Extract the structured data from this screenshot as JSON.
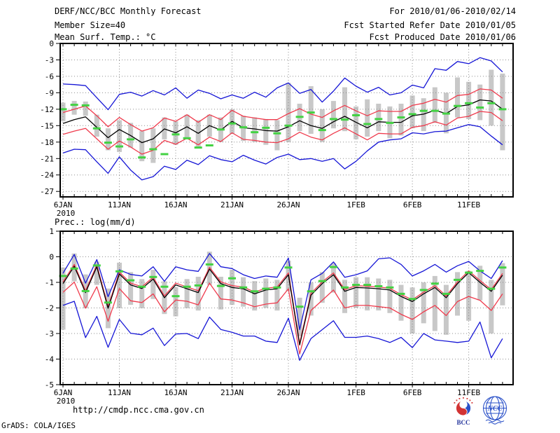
{
  "header": {
    "title": "DERF/NCC/BCC Monthly Forecast",
    "member_size": "Member Size=40",
    "for_range": "For 2010/01/06-2010/02/14",
    "fcst_started": "Fcst Started Refer Date 2010/01/05",
    "fcst_produced": "Fcst Produced Date 2010/01/06"
  },
  "footer": {
    "url": "http://cmdp.ncc.cma.gov.cn",
    "credit": "GrADS: COLA/IGES",
    "bcc_label": "BCC",
    "ncc_label": "NCC"
  },
  "colors": {
    "blue_line": "#1616d6",
    "red_line": "#ef3b4d",
    "mean_line": "#000000",
    "obs_dash": "#43d243",
    "bar": "#c8c8c8",
    "grid": "#8f8f8f",
    "logo_blue": "#2a50c8",
    "logo_red": "#d23333"
  },
  "chart_data": [
    {
      "type": "line",
      "title": "Mean Surf. Temp.: °C",
      "ylim": [
        -28,
        0
      ],
      "yticks": [
        0,
        -3,
        -6,
        -9,
        -12,
        -15,
        -18,
        -21,
        -24,
        -27
      ],
      "n_days": 40,
      "xticks": [
        {
          "label": "6JAN",
          "day": 0,
          "sub": "2010"
        },
        {
          "label": "11JAN",
          "day": 5
        },
        {
          "label": "16JAN",
          "day": 10
        },
        {
          "label": "21JAN",
          "day": 15
        },
        {
          "label": "26JAN",
          "day": 20
        },
        {
          "label": "1FEB",
          "day": 26
        },
        {
          "label": "6FEB",
          "day": 31
        },
        {
          "label": "11FEB",
          "day": 36
        }
      ],
      "series": [
        {
          "name": "ens-min",
          "color_key": "blue_line",
          "values": [
            -20.0,
            -19.3,
            -19.4,
            -21.6,
            -23.7,
            -20.7,
            -23.1,
            -24.9,
            -24.3,
            -22.4,
            -23.0,
            -21.3,
            -22.1,
            -20.5,
            -21.2,
            -21.6,
            -20.4,
            -21.3,
            -22.0,
            -20.8,
            -20.2,
            -21.2,
            -21.0,
            -21.5,
            -21.0,
            -22.9,
            -21.5,
            -19.6,
            -18.0,
            -17.6,
            -17.4,
            -16.3,
            -16.5,
            -16.1,
            -16.0,
            -15.4,
            -14.8,
            -15.2,
            -16.9,
            -18.5
          ]
        },
        {
          "name": "ens-max",
          "color_key": "blue_line",
          "values": [
            -7.4,
            -7.5,
            -7.7,
            -9.9,
            -12.1,
            -9.3,
            -8.9,
            -9.6,
            -8.6,
            -9.4,
            -8.1,
            -10.0,
            -8.5,
            -9.1,
            -10.1,
            -9.4,
            -10.0,
            -8.9,
            -9.8,
            -8.1,
            -7.2,
            -9.1,
            -8.4,
            -10.7,
            -8.7,
            -6.3,
            -7.8,
            -8.9,
            -8.0,
            -9.4,
            -9.0,
            -7.6,
            -8.1,
            -4.6,
            -4.9,
            -3.3,
            -3.7,
            -2.6,
            -3.2,
            -5.2
          ]
        },
        {
          "name": "spread-lo",
          "color_key": "red_line",
          "values": [
            -16.6,
            -16.0,
            -15.5,
            -17.4,
            -19.3,
            -17.8,
            -18.9,
            -20.2,
            -19.5,
            -17.7,
            -18.4,
            -17.3,
            -18.5,
            -17.1,
            -17.9,
            -16.3,
            -17.5,
            -17.7,
            -18.0,
            -18.1,
            -17.4,
            -16.2,
            -17.1,
            -17.6,
            -16.4,
            -15.4,
            -16.5,
            -17.6,
            -16.4,
            -16.5,
            -16.5,
            -15.3,
            -15.0,
            -14.3,
            -14.9,
            -13.6,
            -13.3,
            -12.4,
            -12.6,
            -14.1
          ]
        },
        {
          "name": "spread-hi",
          "color_key": "red_line",
          "values": [
            -12.6,
            -12.0,
            -11.4,
            -13.2,
            -15.2,
            -13.5,
            -14.8,
            -16.0,
            -15.4,
            -13.6,
            -14.2,
            -13.0,
            -14.4,
            -13.0,
            -13.9,
            -12.2,
            -13.3,
            -13.6,
            -13.9,
            -13.9,
            -12.8,
            -11.9,
            -12.9,
            -13.5,
            -12.3,
            -11.3,
            -12.3,
            -13.2,
            -12.3,
            -12.4,
            -12.4,
            -11.3,
            -10.9,
            -10.2,
            -10.7,
            -9.5,
            -9.3,
            -8.3,
            -8.5,
            -10.0
          ]
        },
        {
          "name": "ens-mean",
          "color_key": "mean_line",
          "values": [
            -14.6,
            -13.9,
            -13.4,
            -15.3,
            -17.2,
            -15.7,
            -16.8,
            -18.1,
            -17.4,
            -15.6,
            -16.3,
            -15.2,
            -16.4,
            -15.0,
            -15.8,
            -14.2,
            -15.4,
            -15.6,
            -15.9,
            -16.0,
            -15.2,
            -14.1,
            -15.0,
            -15.5,
            -14.3,
            -13.3,
            -14.4,
            -15.4,
            -14.3,
            -14.4,
            -14.4,
            -13.2,
            -12.9,
            -12.2,
            -12.8,
            -11.5,
            -11.2,
            -10.3,
            -10.5,
            -12.0
          ]
        }
      ],
      "bars": {
        "top": [
          -10.8,
          -10.5,
          -10.6,
          -13.0,
          -15.5,
          -14.0,
          -14.5,
          -16.0,
          -15.5,
          -13.5,
          -14.2,
          -13.0,
          -14.0,
          -13.0,
          -13.5,
          -12.0,
          -13.2,
          -13.5,
          -13.8,
          -14.0,
          -7.2,
          -11.0,
          -7.8,
          -12.0,
          -10.5,
          -8.0,
          -11.5,
          -10.2,
          -11.0,
          -11.5,
          -11.0,
          -9.5,
          -10.0,
          -8.0,
          -9.0,
          -6.2,
          -7.0,
          -7.5,
          -4.8,
          -5.5
        ],
        "bottom": [
          -14.2,
          -13.0,
          -13.2,
          -17.0,
          -19.5,
          -19.8,
          -19.0,
          -21.5,
          -21.8,
          -17.5,
          -18.5,
          -17.2,
          -19.0,
          -17.0,
          -18.0,
          -16.5,
          -17.8,
          -18.0,
          -18.5,
          -19.5,
          -18.0,
          -16.0,
          -16.5,
          -18.0,
          -15.5,
          -16.0,
          -17.5,
          -17.0,
          -16.0,
          -17.3,
          -16.8,
          -15.5,
          -16.0,
          -14.5,
          -16.4,
          -13.5,
          -13.8,
          -14.0,
          -15.0,
          -19.5
        ]
      },
      "obs": [
        -12.0,
        -11.2,
        -11.3,
        -15.5,
        -18.1,
        -18.8,
        -17.5,
        -20.8,
        -19.3,
        -20.2,
        -16.6,
        -17.3,
        -19.0,
        -18.6,
        -15.7,
        -14.6,
        -15.3,
        -16.2,
        -15.4,
        -16.4,
        -15.0,
        -13.4,
        -12.6,
        -15.8,
        -13.8,
        -13.9,
        -13.1,
        -14.7,
        -13.8,
        -14.5,
        -13.5,
        -12.9,
        -12.3,
        -12.3,
        -12.8,
        -11.4,
        -10.9,
        -11.7,
        -10.9,
        -12.0
      ]
    },
    {
      "type": "line",
      "title": "Prec.: log(mm/d)",
      "ylim": [
        -5,
        1
      ],
      "yticks": [
        1,
        0,
        -1,
        -2,
        -3,
        -4,
        -5
      ],
      "n_days": 40,
      "xticks": [
        {
          "label": "6JAN",
          "day": 0,
          "sub": "2010"
        },
        {
          "label": "11JAN",
          "day": 5
        },
        {
          "label": "16JAN",
          "day": 10
        },
        {
          "label": "21JAN",
          "day": 15
        },
        {
          "label": "26JAN",
          "day": 20
        },
        {
          "label": "1FEB",
          "day": 26
        },
        {
          "label": "6FEB",
          "day": 31
        },
        {
          "label": "11FEB",
          "day": 36
        }
      ],
      "series": [
        {
          "name": "ens-min",
          "color_key": "blue_line",
          "values": [
            -1.9,
            -1.74,
            -3.16,
            -2.33,
            -3.54,
            -2.45,
            -2.99,
            -3.05,
            -2.79,
            -3.47,
            -3.02,
            -3.0,
            -3.2,
            -2.36,
            -2.84,
            -2.95,
            -3.1,
            -3.1,
            -3.3,
            -3.35,
            -2.4,
            -4.05,
            -3.2,
            -2.85,
            -2.5,
            -3.15,
            -3.15,
            -3.1,
            -3.2,
            -3.35,
            -3.15,
            -3.55,
            -3.0,
            -3.25,
            -3.3,
            -3.35,
            -3.3,
            -2.55,
            -3.95,
            -3.2
          ]
        },
        {
          "name": "ens-max",
          "color_key": "blue_line",
          "values": [
            -0.64,
            0.09,
            -1.03,
            -0.11,
            -1.56,
            -0.51,
            -0.69,
            -0.75,
            -0.39,
            -0.96,
            -0.39,
            -0.51,
            -0.57,
            0.13,
            -0.39,
            -0.46,
            -0.7,
            -0.85,
            -0.75,
            -0.8,
            -0.05,
            -2.85,
            -0.9,
            -0.65,
            -0.2,
            -0.8,
            -0.7,
            -0.55,
            -0.08,
            -0.04,
            -0.3,
            -0.75,
            -0.55,
            -0.3,
            -0.6,
            -0.35,
            -0.18,
            -0.55,
            -0.85,
            -0.15
          ]
        },
        {
          "name": "spread-lo",
          "color_key": "red_line",
          "values": [
            -1.39,
            -0.99,
            -2.01,
            -1.17,
            -2.52,
            -1.24,
            -1.72,
            -1.79,
            -1.45,
            -2.15,
            -1.69,
            -1.74,
            -1.88,
            -1.03,
            -1.65,
            -1.69,
            -1.8,
            -1.95,
            -1.85,
            -1.8,
            -1.25,
            -3.8,
            -2.1,
            -1.7,
            -1.3,
            -2.0,
            -1.9,
            -1.9,
            -1.95,
            -2.0,
            -2.25,
            -2.45,
            -2.15,
            -1.9,
            -2.3,
            -1.75,
            -1.55,
            -1.7,
            -2.1,
            -1.45
          ]
        },
        {
          "name": "spread-hi",
          "color_key": "red_line",
          "values": [
            -0.98,
            -0.3,
            -1.33,
            -0.32,
            -1.94,
            -0.6,
            -1.03,
            -1.17,
            -0.8,
            -1.53,
            -1.03,
            -1.18,
            -1.33,
            -0.41,
            -0.98,
            -1.13,
            -1.18,
            -1.38,
            -1.23,
            -1.18,
            -0.63,
            -3.38,
            -1.43,
            -0.98,
            -0.63,
            -1.28,
            -1.13,
            -1.15,
            -1.18,
            -1.23,
            -1.48,
            -1.68,
            -1.38,
            -1.13,
            -1.53,
            -0.98,
            -0.55,
            -0.93,
            -1.28,
            -0.65
          ]
        },
        {
          "name": "ens-mean",
          "color_key": "mean_line",
          "values": [
            -1.05,
            -0.37,
            -1.4,
            -0.39,
            -2.01,
            -0.67,
            -1.1,
            -1.24,
            -0.87,
            -1.6,
            -1.1,
            -1.25,
            -1.4,
            -0.48,
            -1.05,
            -1.2,
            -1.25,
            -1.45,
            -1.3,
            -1.25,
            -0.7,
            -3.45,
            -1.5,
            -1.05,
            -0.7,
            -1.35,
            -1.2,
            -1.22,
            -1.25,
            -1.3,
            -1.55,
            -1.75,
            -1.45,
            -1.2,
            -1.6,
            -1.05,
            -0.62,
            -1.0,
            -1.35,
            -0.72
          ]
        }
      ],
      "bars": {
        "top": [
          -0.42,
          0.13,
          -0.69,
          -0.19,
          -1.24,
          -0.23,
          -0.6,
          -0.87,
          -0.51,
          -0.96,
          -1.19,
          -0.87,
          -0.78,
          0.2,
          -0.78,
          -0.51,
          -0.8,
          -0.95,
          -0.85,
          -0.9,
          -0.15,
          -1.6,
          -1.0,
          -0.6,
          -0.25,
          -0.9,
          -0.8,
          -0.8,
          -0.85,
          -0.9,
          -1.1,
          -1.2,
          -1.0,
          -0.75,
          -1.1,
          -0.6,
          -0.55,
          -0.35,
          -0.9,
          -0.25
        ],
        "bottom": [
          -2.85,
          -0.96,
          -2.01,
          -1.1,
          -2.79,
          -2.01,
          -1.88,
          -2.01,
          -1.65,
          -2.24,
          -2.33,
          -2.01,
          -2.1,
          -1.1,
          -2.06,
          -1.88,
          -1.95,
          -2.1,
          -2.0,
          -2.1,
          -1.35,
          -3.1,
          -2.3,
          -1.8,
          -1.4,
          -2.2,
          -2.0,
          -2.1,
          -2.1,
          -2.2,
          -2.5,
          -3.0,
          -2.6,
          -2.9,
          -3.05,
          -2.3,
          -2.5,
          -1.7,
          -3.0,
          -1.9
        ]
      },
      "obs": [
        -0.75,
        -0.46,
        -1.34,
        -0.34,
        -1.79,
        -0.57,
        -0.92,
        -1.17,
        -0.79,
        -1.17,
        -1.54,
        -1.17,
        -1.12,
        -0.3,
        -1.14,
        -0.84,
        -1.2,
        -1.35,
        -1.25,
        -1.2,
        -0.42,
        -1.95,
        -1.35,
        -0.95,
        -0.4,
        -1.2,
        -1.1,
        -1.1,
        -1.15,
        -1.2,
        -1.45,
        -1.65,
        -1.3,
        -1.05,
        -1.45,
        -0.9,
        -0.62,
        -0.55,
        -1.25,
        -0.42
      ]
    }
  ]
}
